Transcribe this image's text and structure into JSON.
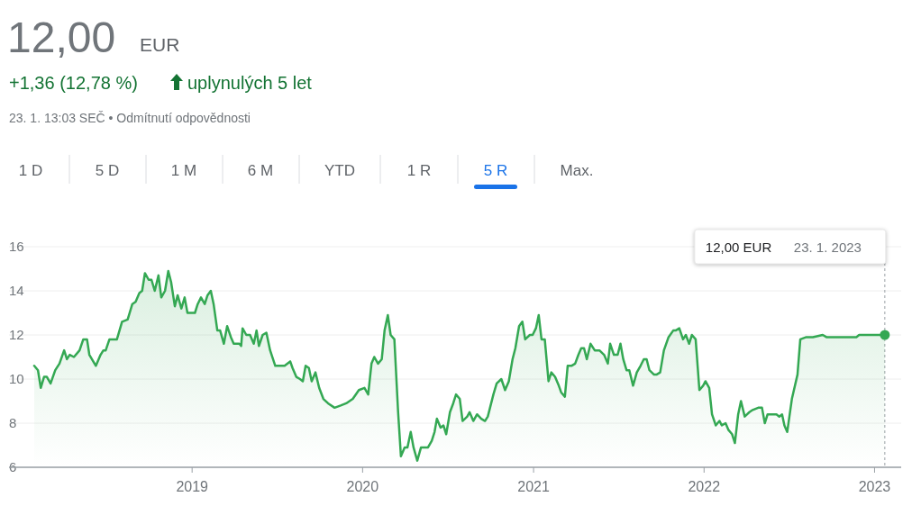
{
  "chart_data": {
    "type": "area",
    "title": "12,00",
    "annotations": [
      "EUR",
      "+1,36 (12,78 %)",
      "uplynulých 5 let",
      "23. 1. 13:03 SEČ • Odmítnutí odpovědnosti",
      "1 D",
      "5 D",
      "1 M",
      "6 M",
      "YTD",
      "1 R",
      "5 R",
      "Max.",
      "12,00 EUR",
      "23. 1. 2023"
    ],
    "x": [
      "2018-01-28",
      "2018-02-05",
      "2018-02-11",
      "2018-02-18",
      "2018-02-24",
      "2018-03-04",
      "2018-03-14",
      "2018-03-23",
      "2018-04-02",
      "2018-04-08",
      "2018-04-14",
      "2018-04-23",
      "2018-05-05",
      "2018-05-13",
      "2018-05-21",
      "2018-05-26",
      "2018-06-09",
      "2018-06-19",
      "2018-06-25",
      "2018-06-30",
      "2018-07-08",
      "2018-07-24",
      "2018-08-04",
      "2018-08-16",
      "2018-08-26",
      "2018-09-02",
      "2018-09-10",
      "2018-09-16",
      "2018-09-22",
      "2018-09-30",
      "2018-10-06",
      "2018-10-13",
      "2018-10-21",
      "2018-10-27",
      "2018-11-04",
      "2018-11-11",
      "2018-11-17",
      "2018-11-25",
      "2018-12-01",
      "2018-12-09",
      "2018-12-16",
      "2018-12-22",
      "2019-01-01",
      "2019-01-07",
      "2019-01-13",
      "2019-01-20",
      "2019-01-28",
      "2019-02-03",
      "2019-02-10",
      "2019-02-16",
      "2019-02-24",
      "2019-03-02",
      "2019-03-10",
      "2019-03-17",
      "2019-03-25",
      "2019-03-31",
      "2019-04-12",
      "2019-04-16",
      "2019-04-19",
      "2019-04-27",
      "2019-05-05",
      "2019-05-13",
      "2019-05-19",
      "2019-05-24",
      "2019-06-01",
      "2019-06-09",
      "2019-06-17",
      "2019-06-28",
      "2019-07-18",
      "2019-07-30",
      "2019-08-04",
      "2019-08-12",
      "2019-08-20",
      "2019-08-26",
      "2019-09-01",
      "2019-09-08",
      "2019-09-14",
      "2019-09-22",
      "2019-09-30",
      "2019-10-09",
      "2019-10-19",
      "2019-11-02",
      "2019-11-15",
      "2019-11-27",
      "2019-12-11",
      "2019-12-24",
      "2020-01-05",
      "2020-01-13",
      "2020-01-20",
      "2020-01-26",
      "2020-02-03",
      "2020-02-11",
      "2020-02-17",
      "2020-02-24",
      "2020-03-01",
      "2020-03-09",
      "2020-03-17",
      "2020-03-23",
      "2020-03-31",
      "2020-04-06",
      "2020-04-13",
      "2020-04-19",
      "2020-04-27",
      "2020-05-05",
      "2020-05-14",
      "2020-05-20",
      "2020-05-28",
      "2020-06-03",
      "2020-06-08",
      "2020-06-16",
      "2020-06-22",
      "2020-06-28",
      "2020-07-06",
      "2020-07-13",
      "2020-07-19",
      "2020-07-27",
      "2020-08-02",
      "2020-08-12",
      "2020-08-17",
      "2020-08-25",
      "2020-09-02",
      "2020-09-11",
      "2020-09-19",
      "2020-09-25",
      "2020-10-07",
      "2020-10-14",
      "2020-10-24",
      "2020-11-01",
      "2020-11-09",
      "2020-11-17",
      "2020-11-23",
      "2020-12-01",
      "2020-12-08",
      "2020-12-14",
      "2020-12-24",
      "2020-12-30",
      "2021-01-06",
      "2021-01-12",
      "2021-01-18",
      "2021-01-25",
      "2021-02-02",
      "2021-02-08",
      "2021-02-16",
      "2021-02-24",
      "2021-03-01",
      "2021-03-09",
      "2021-03-15",
      "2021-03-23",
      "2021-03-31",
      "2021-04-07",
      "2021-04-13",
      "2021-04-19",
      "2021-04-25",
      "2021-05-03",
      "2021-05-12",
      "2021-05-22",
      "2021-06-01",
      "2021-06-09",
      "2021-06-14",
      "2021-06-22",
      "2021-06-30",
      "2021-07-06",
      "2021-07-12",
      "2021-07-19",
      "2021-07-25",
      "2021-08-02",
      "2021-08-10",
      "2021-08-18",
      "2021-08-25",
      "2021-08-31",
      "2021-09-06",
      "2021-09-16",
      "2021-09-21",
      "2021-09-29",
      "2021-10-07",
      "2021-10-17",
      "2021-10-27",
      "2021-11-01",
      "2021-11-09",
      "2021-11-17",
      "2021-11-23",
      "2021-11-30",
      "2021-12-06",
      "2021-12-14",
      "2021-12-22",
      "2021-12-30",
      "2022-01-04",
      "2022-01-12",
      "2022-01-18",
      "2022-01-26",
      "2022-02-03",
      "2022-02-08",
      "2022-02-16",
      "2022-02-22",
      "2022-03-02",
      "2022-03-08",
      "2022-03-15",
      "2022-03-21",
      "2022-03-29",
      "2022-04-08",
      "2022-04-15",
      "2022-04-27",
      "2022-05-05",
      "2022-05-11",
      "2022-05-17",
      "2022-05-26",
      "2022-06-05",
      "2022-06-11",
      "2022-06-17",
      "2022-06-22",
      "2022-06-28",
      "2022-07-08",
      "2022-07-20",
      "2022-07-26",
      "2022-08-08",
      "2022-08-22",
      "2022-09-12",
      "2022-09-20",
      "2022-10-05",
      "2022-10-21",
      "2022-11-07",
      "2022-11-23",
      "2022-11-29",
      "2023-01-23"
    ],
    "series": [
      {
        "color": "#34a853",
        "values": [
          10.6,
          10.4,
          9.6,
          10.1,
          10.1,
          9.8,
          10.4,
          10.7,
          11.3,
          10.9,
          11.1,
          11.0,
          11.3,
          11.8,
          11.8,
          11.1,
          10.6,
          11.1,
          11.3,
          11.3,
          11.8,
          11.8,
          12.6,
          12.7,
          13.4,
          13.5,
          13.9,
          14.0,
          14.8,
          14.5,
          14.5,
          14.0,
          14.7,
          13.7,
          14.0,
          14.9,
          14.4,
          13.3,
          13.8,
          13.2,
          13.7,
          13.0,
          13.0,
          13.0,
          13.4,
          13.7,
          13.4,
          13.8,
          14.0,
          13.4,
          12.2,
          12.2,
          11.6,
          12.4,
          11.9,
          11.6,
          11.6,
          11.5,
          12.3,
          12.0,
          12.0,
          11.6,
          12.2,
          11.5,
          12.0,
          12.1,
          11.3,
          10.6,
          10.6,
          10.8,
          10.5,
          10.1,
          10.0,
          9.9,
          10.6,
          10.5,
          9.9,
          10.3,
          9.6,
          9.1,
          8.9,
          8.7,
          8.8,
          8.9,
          9.1,
          9.5,
          9.6,
          9.3,
          10.7,
          11.0,
          10.7,
          10.9,
          12.2,
          12.9,
          12.0,
          11.8,
          8.5,
          6.5,
          6.9,
          6.9,
          7.6,
          6.9,
          6.3,
          6.9,
          6.9,
          6.9,
          7.2,
          7.6,
          8.2,
          7.8,
          7.9,
          7.5,
          8.5,
          8.9,
          9.3,
          9.1,
          8.1,
          8.3,
          8.5,
          8.1,
          8.4,
          8.2,
          8.1,
          8.3,
          9.3,
          9.8,
          10.0,
          9.5,
          9.9,
          10.9,
          11.4,
          12.4,
          12.6,
          11.8,
          12.0,
          12.0,
          12.3,
          12.9,
          11.8,
          11.8,
          9.9,
          10.3,
          10.1,
          9.7,
          9.4,
          9.2,
          10.6,
          10.6,
          10.7,
          11.1,
          11.4,
          11.4,
          10.9,
          11.6,
          11.3,
          11.3,
          11.1,
          10.7,
          11.6,
          11.1,
          11.1,
          11.6,
          10.9,
          10.4,
          10.4,
          9.7,
          10.3,
          10.6,
          10.9,
          10.9,
          10.4,
          10.2,
          10.2,
          10.3,
          11.3,
          11.9,
          12.2,
          12.2,
          12.3,
          11.8,
          12.0,
          11.6,
          12.0,
          11.8,
          9.5,
          9.7,
          9.9,
          9.6,
          8.4,
          7.9,
          8.1,
          7.9,
          8.0,
          7.7,
          7.5,
          7.1,
          8.4,
          9.0,
          8.3,
          8.5,
          8.6,
          8.7,
          8.7,
          8.0,
          8.4,
          8.4,
          8.4,
          8.3,
          8.4,
          7.9,
          7.6,
          9.1,
          10.2,
          11.8,
          11.9,
          11.9,
          12.0,
          11.9,
          11.9,
          11.9,
          11.9,
          11.9,
          12.0,
          12.0
        ]
      }
    ],
    "xlim": [
      "2017-12-05",
      "2023-02-27"
    ],
    "xticks": [
      {
        "value": "2019-01-01",
        "label": "2019"
      },
      {
        "value": "2020-01-01",
        "label": "2020"
      },
      {
        "value": "2021-01-01",
        "label": "2021"
      },
      {
        "value": "2022-01-01",
        "label": "2022"
      },
      {
        "value": "2023-01-01",
        "label": "2023"
      }
    ],
    "ref_lines": [
      {
        "axis": "x",
        "value": "2023-01-23",
        "color": "#9aa0a6",
        "line_style": "dashed"
      }
    ],
    "ylim": [
      6,
      16
    ],
    "yticks": [
      6,
      8,
      10,
      12,
      14,
      16
    ],
    "grid": "y"
  }
}
